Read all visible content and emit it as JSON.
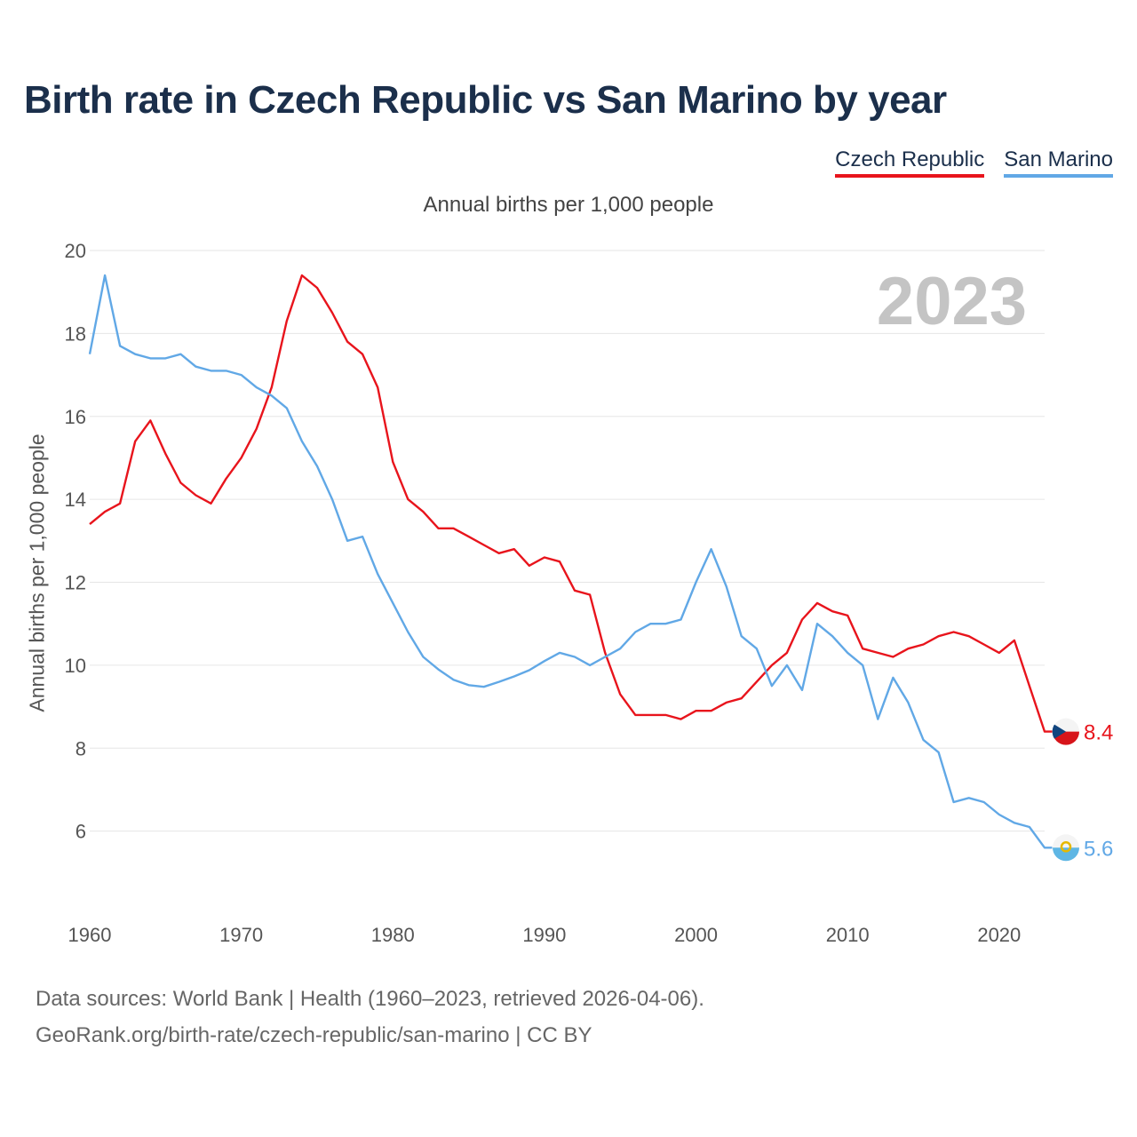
{
  "title": "Birth rate in Czech Republic vs San Marino by year",
  "subtitle": "Annual births per 1,000 people",
  "year_display": "2023",
  "legend": {
    "cz": "Czech Republic",
    "sm": "San Marino"
  },
  "footer": {
    "line1": "Data sources: World Bank | Health (1960–2023, retrieved 2026-04-06).",
    "line2": "GeoRank.org/birth-rate/czech-republic/san-marino | CC BY"
  },
  "colors": {
    "cz": "#e8141c",
    "sm": "#61a8e6",
    "grid": "#e6e6e6"
  },
  "chart_data": {
    "type": "line",
    "title": "Birth rate in Czech Republic vs San Marino by year",
    "xlabel": "",
    "ylabel": "Annual births per 1,000 people",
    "xlim": [
      1960,
      2023
    ],
    "ylim": [
      4.6,
      20
    ],
    "xticks": [
      1960,
      1970,
      1980,
      1990,
      2000,
      2010,
      2020
    ],
    "yticks": [
      6,
      8,
      10,
      12,
      14,
      16,
      18,
      20
    ],
    "x": [
      1960,
      1961,
      1962,
      1963,
      1964,
      1965,
      1966,
      1967,
      1968,
      1969,
      1970,
      1971,
      1972,
      1973,
      1974,
      1975,
      1976,
      1977,
      1978,
      1979,
      1980,
      1981,
      1982,
      1983,
      1984,
      1985,
      1986,
      1987,
      1988,
      1989,
      1990,
      1991,
      1992,
      1993,
      1994,
      1995,
      1996,
      1997,
      1998,
      1999,
      2000,
      2001,
      2002,
      2003,
      2004,
      2005,
      2006,
      2007,
      2008,
      2009,
      2010,
      2011,
      2012,
      2013,
      2014,
      2015,
      2016,
      2017,
      2018,
      2019,
      2020,
      2021,
      2022,
      2023
    ],
    "series": [
      {
        "name": "Czech Republic",
        "color": "#e8141c",
        "end_label": "8.4",
        "values": [
          13.4,
          13.7,
          13.9,
          15.4,
          15.9,
          15.1,
          14.4,
          14.1,
          13.9,
          14.5,
          15.0,
          15.7,
          16.7,
          18.3,
          19.4,
          19.1,
          18.5,
          17.8,
          17.5,
          16.7,
          14.9,
          14.0,
          13.7,
          13.3,
          13.3,
          13.1,
          12.9,
          12.7,
          12.8,
          12.4,
          12.6,
          12.5,
          11.8,
          11.7,
          10.3,
          9.3,
          8.8,
          8.8,
          8.8,
          8.7,
          8.9,
          8.9,
          9.1,
          9.2,
          9.6,
          10.0,
          10.3,
          11.1,
          11.5,
          11.3,
          11.2,
          10.4,
          10.3,
          10.2,
          10.4,
          10.5,
          10.7,
          10.8,
          10.7,
          10.5,
          10.3,
          10.6,
          9.5,
          8.4
        ]
      },
      {
        "name": "San Marino",
        "color": "#61a8e6",
        "end_label": "5.6",
        "values": [
          17.5,
          19.4,
          17.7,
          17.5,
          17.4,
          17.4,
          17.5,
          17.2,
          17.1,
          17.1,
          17.0,
          16.7,
          16.5,
          16.2,
          15.4,
          14.8,
          14.0,
          13.0,
          13.1,
          12.2,
          11.5,
          10.8,
          10.2,
          9.9,
          9.65,
          9.52,
          9.48,
          9.6,
          9.73,
          9.88,
          10.1,
          10.3,
          10.2,
          10.0,
          10.2,
          10.4,
          10.8,
          11.0,
          11.0,
          11.1,
          12.0,
          12.8,
          11.9,
          10.7,
          10.4,
          9.5,
          10.0,
          9.4,
          11.0,
          10.7,
          10.3,
          10.0,
          8.7,
          9.7,
          9.1,
          8.2,
          7.9,
          6.7,
          6.8,
          6.7,
          6.4,
          6.2,
          6.1,
          5.6
        ]
      }
    ]
  }
}
